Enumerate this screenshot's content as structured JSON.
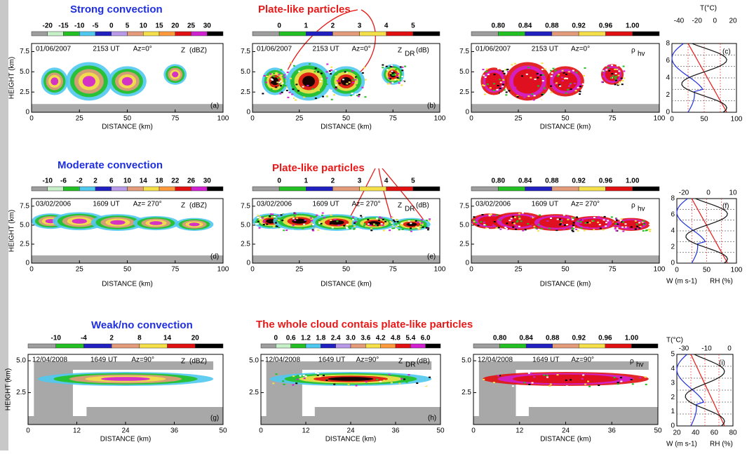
{
  "rows": [
    {
      "title": "Strong convection",
      "annotation": "Plate-like particles",
      "panels": [
        {
          "info": [
            "01/06/2007",
            "2153 UT",
            "Az=0°"
          ],
          "label": {
            "main": "Z",
            "unit": "(dBZ)"
          },
          "letter": "(a)",
          "cbar": [
            "-20",
            "-15",
            "-10",
            "-5",
            "0",
            "5",
            "10",
            "15",
            "20",
            "25",
            "30"
          ],
          "yticks": [
            "0",
            "2.5",
            "5.0",
            "7.5"
          ],
          "xticks": [
            "0",
            "25",
            "50",
            "75",
            "100"
          ],
          "xlabel": "DISTANCE (km)",
          "ylabel": "HEIGHT (km)"
        },
        {
          "info": [
            "01/06/2007",
            "2153 UT",
            "Az=0°"
          ],
          "label": {
            "main": "Z",
            "sub": "DR",
            "unit": "(dB)"
          },
          "letter": "(b)",
          "cbar": [
            "0",
            "1",
            "2",
            "3",
            "4",
            "5"
          ],
          "yticks": [
            "0",
            "2.5",
            "5.0",
            "7.5"
          ],
          "xticks": [
            "0",
            "25",
            "50",
            "75",
            "100"
          ],
          "xlabel": "DISTANCE (km)"
        },
        {
          "info": [
            "01/06/2007",
            "2153 UT",
            "Az=0°"
          ],
          "label": {
            "main": "ρ",
            "sub": "hv"
          },
          "cbar": [
            "0.80",
            "0.84",
            "0.88",
            "0.92",
            "0.96",
            "1.00"
          ],
          "yticks": [
            "0",
            "2.5",
            "5.0",
            "7.5"
          ],
          "xticks": [
            "0",
            "25",
            "50",
            "75",
            "100"
          ],
          "xlabel": "DISTANCE (km)"
        }
      ],
      "profile": {
        "top_label": "T(°C)",
        "top_ticks": [
          "-40",
          "-20",
          "0",
          "20"
        ],
        "yticks": [
          "0",
          "2",
          "4",
          "6",
          "8"
        ],
        "xticks": [
          "0",
          "50",
          "100"
        ],
        "letter": "(c)"
      }
    },
    {
      "title": "Moderate convection",
      "annotation": "Plate-like particles",
      "panels": [
        {
          "info": [
            "03/02/2006",
            "1609 UT",
            "Az= 270°"
          ],
          "label": {
            "main": "Z",
            "unit": "(dBZ)"
          },
          "letter": "(d)",
          "cbar": [
            "-10",
            "-6",
            "-2",
            "2",
            "6",
            "10",
            "14",
            "18",
            "22",
            "26",
            "30"
          ],
          "yticks": [
            "0",
            "2.5",
            "5.0",
            "7.5"
          ],
          "xticks": [
            "0",
            "25",
            "50",
            "75",
            "100"
          ],
          "xlabel": "DISTANCE (km)",
          "ylabel": "HEIGHT (km)"
        },
        {
          "info": [
            "03/02/2006",
            "1609 UT",
            "Az= 270°"
          ],
          "label": {
            "main": "Z",
            "sub": "DR",
            "unit": "(dB)"
          },
          "letter": "(e)",
          "cbar": [
            "0",
            "1",
            "2",
            "3",
            "4",
            "5"
          ],
          "yticks": [
            "0",
            "2.5",
            "5.0",
            "7.5"
          ],
          "xticks": [
            "0",
            "25",
            "50",
            "75",
            "100"
          ],
          "xlabel": "DISTANCE (km)"
        },
        {
          "info": [
            "03/02/2006",
            "1609 UT",
            "Az= 270°"
          ],
          "label": {
            "main": "ρ",
            "sub": "hv"
          },
          "cbar": [
            "0.80",
            "0.84",
            "0.88",
            "0.92",
            "0.96",
            "1.00"
          ],
          "yticks": [
            "0",
            "2.5",
            "5.0",
            "7.5"
          ],
          "xticks": [
            "0",
            "25",
            "50",
            "75",
            "100"
          ],
          "xlabel": "DISTANCE (km)"
        }
      ],
      "profile": {
        "top_ticks": [
          "-20",
          "0",
          "10"
        ],
        "yticks": [
          "0",
          "2",
          "4",
          "6",
          "8"
        ],
        "xticks": [
          "0",
          "50",
          "100"
        ],
        "letter": "(f)",
        "w_label": "W (m s-1)",
        "rh_label": "RH  (%)"
      }
    },
    {
      "title": "Weak/no   convection",
      "annotation": "The whole cloud contais plate-like particles",
      "panels": [
        {
          "info": [
            "12/04/2008",
            "1649 UT",
            "Az=90°"
          ],
          "label": {
            "main": "Z",
            "unit": "(dBZ)"
          },
          "letter": "(g)",
          "cbar": [
            "-10",
            "-4",
            "2",
            "8",
            "14",
            "20"
          ],
          "yticks": [
            "2.5",
            "5.0"
          ],
          "xticks": [
            "0",
            "12",
            "24",
            "36",
            "50"
          ],
          "xlabel": "DISTANCE (km)",
          "ylabel": "HEIGHT (km)"
        },
        {
          "info": [
            "12/04/2008",
            "1649 UT",
            "Az=90°"
          ],
          "label": {
            "main": "Z",
            "sub": "DR",
            "unit": "(dB)"
          },
          "letter": "(h)",
          "cbar": [
            "0",
            "0.6",
            "1.2",
            "1.8",
            "2.4",
            "3.0",
            "3.6",
            "4.2",
            "4.8",
            "5.4",
            "6.0"
          ],
          "yticks": [
            "2.5",
            "5.0"
          ],
          "xticks": [
            "0",
            "12",
            "24",
            "36",
            "50"
          ],
          "xlabel": "DISTANCE (km)"
        },
        {
          "info": [
            "12/04/2008",
            "1649 UT",
            "Az=90°"
          ],
          "label": {
            "main": "ρ",
            "sub": "hv"
          },
          "cbar": [
            "0.80",
            "0.84",
            "0.88",
            "0.92",
            "0.96",
            "1.00"
          ],
          "yticks": [
            "2.5",
            "5.0"
          ],
          "xticks": [
            "0",
            "12",
            "24",
            "36",
            "50"
          ],
          "xlabel": "DISTANCE (km)"
        }
      ],
      "profile": {
        "top_label": "T(°C)",
        "top_ticks": [
          "-30",
          "-10",
          "0"
        ],
        "yticks": [
          "0",
          "1",
          "2",
          "3",
          "4",
          "5"
        ],
        "xticks": [
          "20",
          "40",
          "60",
          "80"
        ],
        "letter": "(i)",
        "w_label": "W (m s-1)",
        "rh_label": "RH  (%)"
      }
    }
  ]
}
